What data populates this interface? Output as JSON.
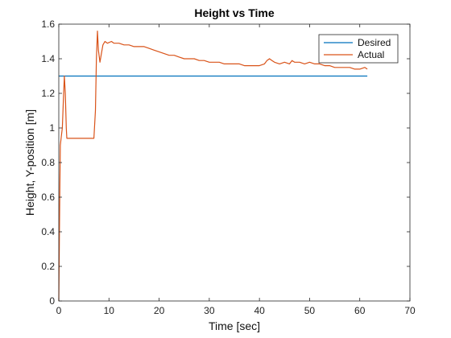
{
  "chart_data": {
    "type": "line",
    "title": "Height vs Time",
    "xlabel": "Time [sec]",
    "ylabel": "Height, Y-position [m]",
    "xlim": [
      0,
      70
    ],
    "ylim": [
      0,
      1.6
    ],
    "xticks": [
      0,
      10,
      20,
      30,
      40,
      50,
      60,
      70
    ],
    "yticks": [
      0,
      0.2,
      0.4,
      0.6,
      0.8,
      1,
      1.2,
      1.4,
      1.6
    ],
    "xtick_labels": [
      "0",
      "10",
      "20",
      "30",
      "40",
      "50",
      "60",
      "70"
    ],
    "ytick_labels": [
      "0",
      "0.2",
      "0.4",
      "0.6",
      "0.8",
      "1",
      "1.2",
      "1.4",
      "1.6"
    ],
    "grid": false,
    "legend_position": "top-right",
    "series": [
      {
        "name": "Desired",
        "color": "#0072BD",
        "x": [
          0,
          61.5
        ],
        "y": [
          1.3,
          1.3
        ]
      },
      {
        "name": "Actual",
        "color": "#D95319",
        "x": [
          0,
          0.1,
          0.2,
          0.3,
          0.5,
          0.7,
          0.9,
          1.1,
          1.3,
          1.5,
          1.6,
          1.8,
          2.0,
          3,
          4,
          5,
          6,
          7,
          7.3,
          7.5,
          7.7,
          7.9,
          8.2,
          8.5,
          8.8,
          9.2,
          9.7,
          10.5,
          11,
          12,
          13,
          14,
          15,
          16,
          17,
          18,
          19,
          20,
          21,
          22,
          23,
          24,
          25,
          26,
          27,
          28,
          29,
          30,
          31,
          32,
          33,
          34,
          35,
          36,
          37,
          38,
          39,
          40,
          41,
          41.5,
          42,
          42.5,
          43,
          44,
          45,
          46,
          46.5,
          47,
          48,
          49,
          50,
          51,
          52,
          53,
          54,
          55,
          56,
          57,
          58,
          59,
          60,
          61,
          61.5
        ],
        "y": [
          0,
          0.3,
          0.6,
          0.9,
          0.95,
          1.0,
          1.15,
          1.3,
          1.2,
          1.0,
          0.94,
          0.94,
          0.94,
          0.94,
          0.94,
          0.94,
          0.94,
          0.94,
          1.1,
          1.4,
          1.56,
          1.45,
          1.38,
          1.43,
          1.48,
          1.5,
          1.49,
          1.5,
          1.49,
          1.49,
          1.48,
          1.48,
          1.47,
          1.47,
          1.47,
          1.46,
          1.45,
          1.44,
          1.43,
          1.42,
          1.42,
          1.41,
          1.4,
          1.4,
          1.4,
          1.39,
          1.39,
          1.38,
          1.38,
          1.38,
          1.37,
          1.37,
          1.37,
          1.37,
          1.36,
          1.36,
          1.36,
          1.36,
          1.37,
          1.39,
          1.4,
          1.39,
          1.38,
          1.37,
          1.38,
          1.37,
          1.39,
          1.38,
          1.38,
          1.37,
          1.38,
          1.37,
          1.37,
          1.36,
          1.36,
          1.35,
          1.35,
          1.35,
          1.35,
          1.34,
          1.34,
          1.35,
          1.34
        ]
      }
    ]
  }
}
